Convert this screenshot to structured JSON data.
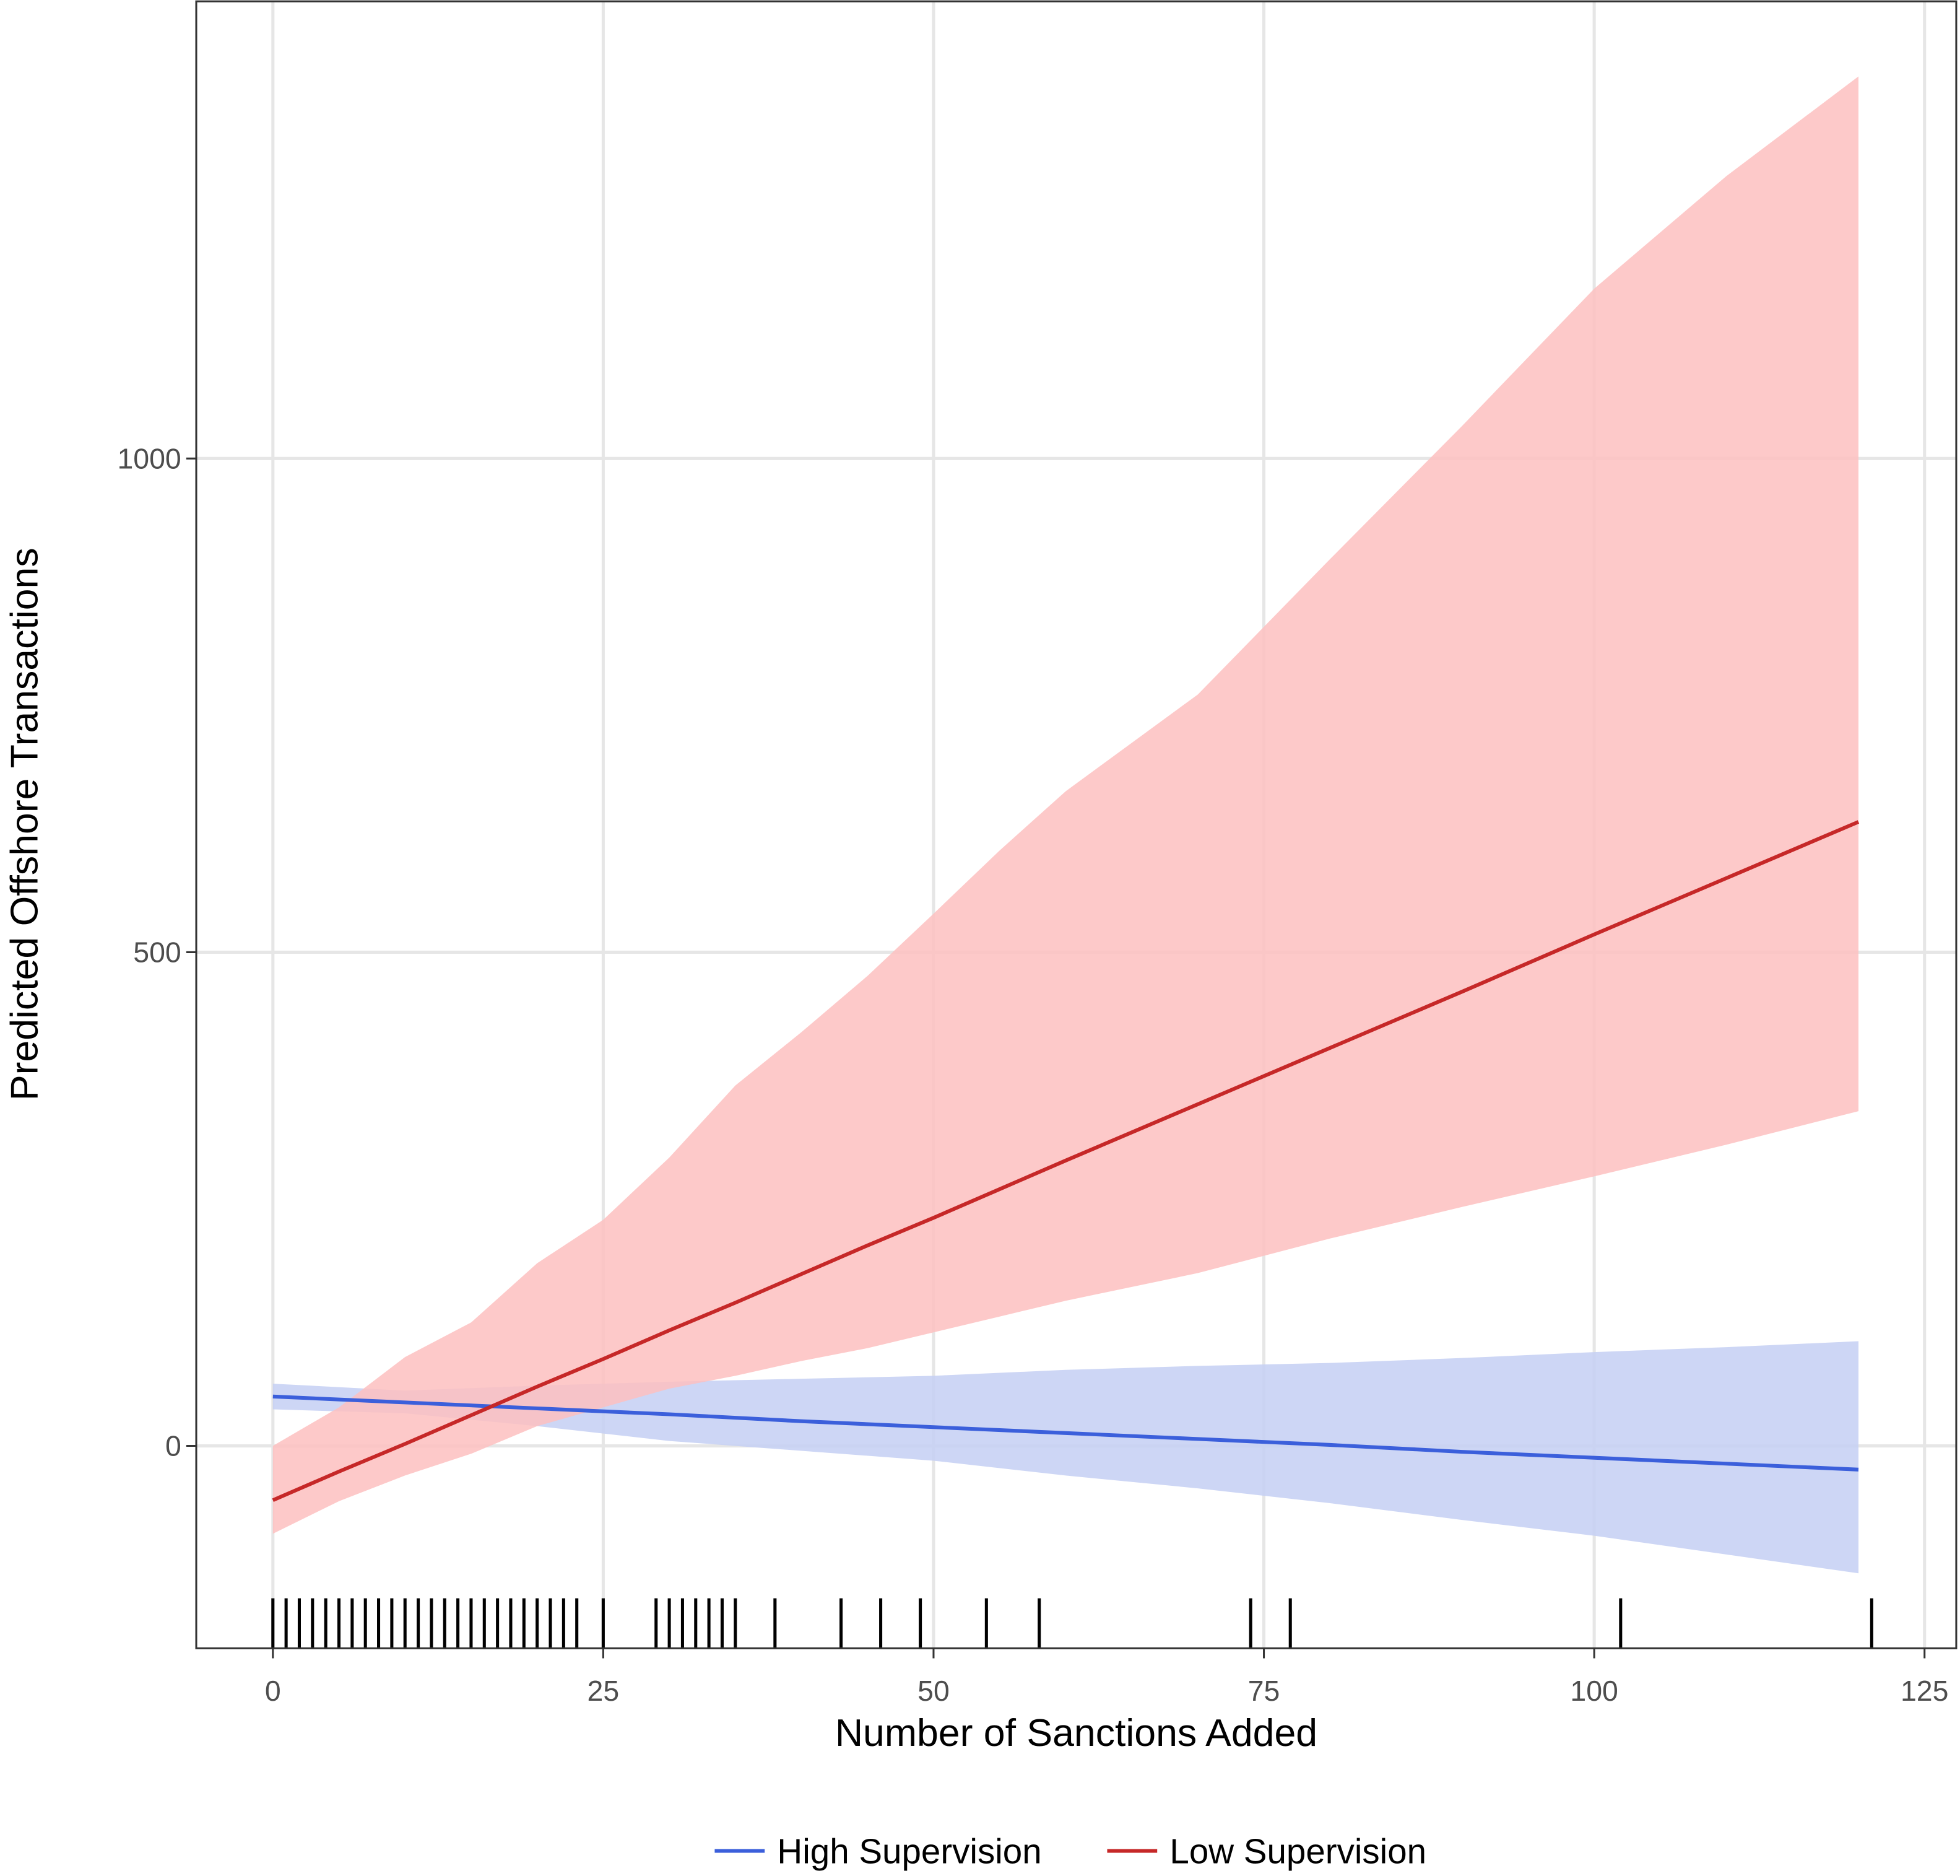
{
  "chart_data": {
    "type": "line",
    "x_label": "Number of Sanctions Added",
    "y_label": "Predicted Offshore Transactions",
    "xlim": [
      -5.8,
      127.4
    ],
    "ylim": [
      -205,
      1463
    ],
    "xticks": [
      0,
      25,
      50,
      75,
      100,
      125
    ],
    "yticks": [
      0,
      500,
      1000
    ],
    "grid": true,
    "legend": "bottom",
    "series": [
      {
        "name": "High Supervision",
        "color": "#3b5fdb",
        "band_color": "#c4cff3",
        "x": [
          0,
          10,
          20,
          30,
          40,
          50,
          60,
          70,
          80,
          90,
          100,
          110,
          120
        ],
        "values": [
          50,
          44,
          38,
          32,
          25,
          19,
          13,
          7,
          1,
          -6,
          -12,
          -18,
          -24
        ],
        "lower": [
          37,
          33,
          20,
          5,
          -5,
          -15,
          -30,
          -43,
          -58,
          -75,
          -91,
          -110,
          -129
        ],
        "upper": [
          63,
          56,
          61,
          65,
          68,
          71,
          77,
          81,
          84,
          89,
          95,
          100,
          106
        ]
      },
      {
        "name": "Low Supervision",
        "color": "#c62828",
        "band_color": "#fdbfc0",
        "x": [
          0,
          5,
          10,
          15,
          20,
          25,
          30,
          35,
          40,
          45,
          50,
          55,
          60,
          70,
          80,
          90,
          100,
          110,
          120
        ],
        "values": [
          -55,
          -26,
          2,
          31,
          60,
          88,
          117,
          145,
          174,
          203,
          231,
          260,
          289,
          346,
          403,
          460,
          518,
          575,
          632
        ],
        "lower": [
          -89,
          -56,
          -30,
          -8,
          20,
          39,
          58,
          71,
          86,
          99,
          115,
          131,
          147,
          175,
          210,
          242,
          273,
          305,
          339
        ],
        "upper": [
          0,
          39,
          90,
          125,
          185,
          229,
          292,
          365,
          419,
          476,
          539,
          603,
          663,
          761,
          898,
          1033,
          1172,
          1286,
          1387
        ]
      }
    ],
    "rug": [
      0,
      1,
      2,
      3,
      4,
      5,
      6,
      7,
      8,
      9,
      10,
      11,
      12,
      13,
      14,
      15,
      16,
      17,
      18,
      19,
      20,
      21,
      22,
      23,
      25,
      29,
      30,
      31,
      32,
      33,
      34,
      35,
      38,
      43,
      46,
      49,
      54,
      58,
      74,
      77,
      102,
      121
    ]
  }
}
